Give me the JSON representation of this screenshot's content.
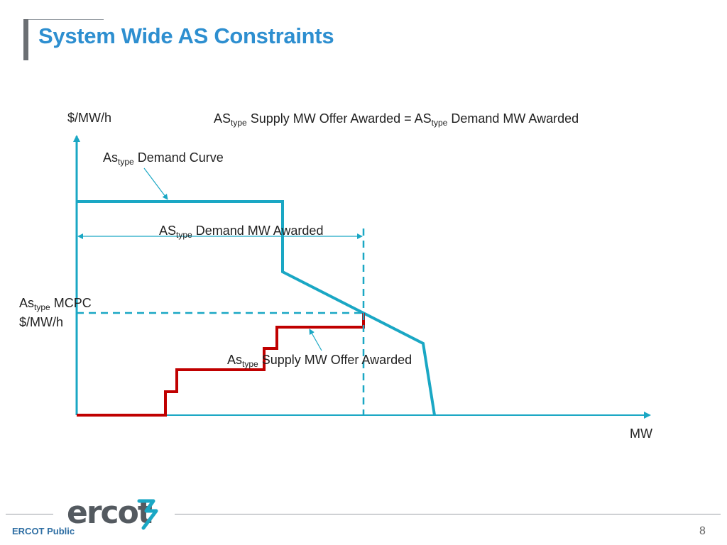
{
  "slide": {
    "title": "System Wide AS Constraints",
    "page_number": "8"
  },
  "labels": {
    "y_axis": "$/MW/h",
    "x_axis": "MW",
    "equation": {
      "left_main": "AS",
      "left_sub": "type",
      "middle": " Supply MW Offer Awarded = AS",
      "right_sub": "type",
      "right_main": " Demand MW Awarded"
    },
    "demand_curve": {
      "main": "As",
      "sub": "type",
      "rest": " Demand Curve"
    },
    "demand_awarded": {
      "main": "AS",
      "sub": "type",
      "rest": " Demand MW Awarded"
    },
    "mcpc": {
      "main": "As",
      "sub": "type",
      "rest": " MCPC",
      "line2": "$/MW/h"
    },
    "supply_awarded": {
      "main": "As",
      "sub": "type",
      "rest": " Supply MW Offer Awarded"
    }
  },
  "footer": {
    "logo_text": "ercot",
    "classification": "ERCOT Public"
  },
  "colors": {
    "title": "#2e8fd0",
    "demand_curve": "#1aa7c4",
    "supply_curve": "#c00000",
    "axis": "#1aa7c4"
  }
}
